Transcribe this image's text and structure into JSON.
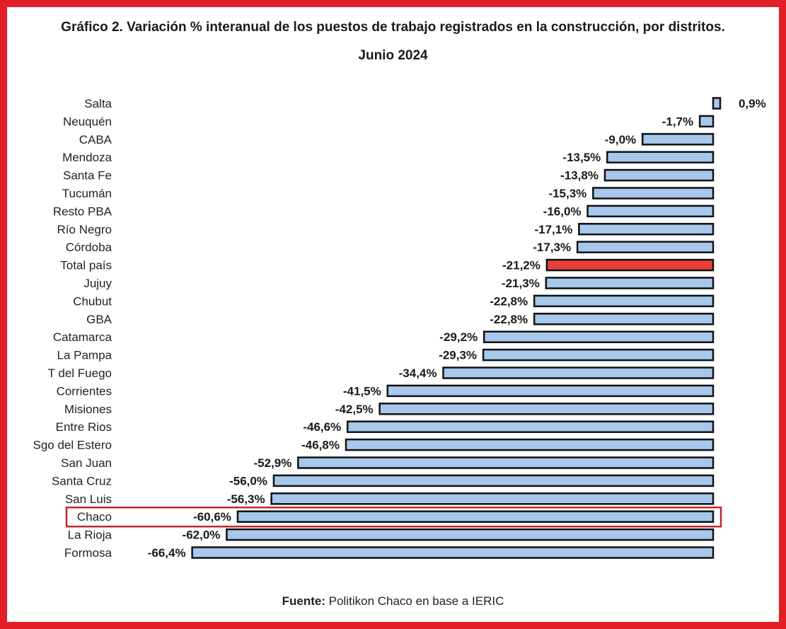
{
  "title": "Gráfico 2. Variación % interanual de los puestos de trabajo registrados en la construcción, por distritos.",
  "subtitle": "Junio 2024",
  "source": {
    "label": "Fuente:",
    "text": "Politikon Chaco en base a IERIC"
  },
  "colors": {
    "bar": "#a6c8ec",
    "highlight_bar": "#e8403a",
    "bar_stroke": "#111111",
    "frame": "#e31e24",
    "highlight_box": "#c0272d"
  },
  "chart_data": {
    "type": "bar",
    "orientation": "horizontal",
    "title": "Gráfico 2. Variación % interanual de los puestos de trabajo registrados en la construcción, por distritos.",
    "subtitle": "Junio 2024",
    "xlabel": "",
    "ylabel": "",
    "grid": false,
    "legend": "none",
    "xlim": [
      -70,
      1
    ],
    "categories": [
      "Salta",
      "Neuquén",
      "CABA",
      "Mendoza",
      "Santa Fe",
      "Tucumán",
      "Resto PBA",
      "Río Negro",
      "Córdoba",
      "Total país",
      "Jujuy",
      "Chubut",
      "GBA",
      "Catamarca",
      "La Pampa",
      "T del Fuego",
      "Corrientes",
      "Misiones",
      "Entre Rios",
      "Sgo del Estero",
      "San Juan",
      "Santa Cruz",
      "San Luis",
      "Chaco",
      "La Rioja",
      "Formosa"
    ],
    "values": [
      0.9,
      -1.7,
      -9.0,
      -13.5,
      -13.8,
      -15.3,
      -16.0,
      -17.1,
      -17.3,
      -21.2,
      -21.3,
      -22.8,
      -22.8,
      -29.2,
      -29.3,
      -34.4,
      -41.5,
      -42.5,
      -46.6,
      -46.8,
      -52.9,
      -56.0,
      -56.3,
      -60.6,
      -62.0,
      -66.4
    ],
    "data_labels": [
      "0,9%",
      "-1,7%",
      "-9,0%",
      "-13,5%",
      "-13,8%",
      "-15,3%",
      "-16,0%",
      "-17,1%",
      "-17,3%",
      "-21,2%",
      "-21,3%",
      "-22,8%",
      "-22,8%",
      "-29,2%",
      "-29,3%",
      "-34,4%",
      "-41,5%",
      "-42,5%",
      "-46,6%",
      "-46,8%",
      "-52,9%",
      "-56,0%",
      "-56,3%",
      "-60,6%",
      "-62,0%",
      "-66,4%"
    ],
    "highlight_fill": "Total país",
    "highlight_box": "Chaco"
  }
}
